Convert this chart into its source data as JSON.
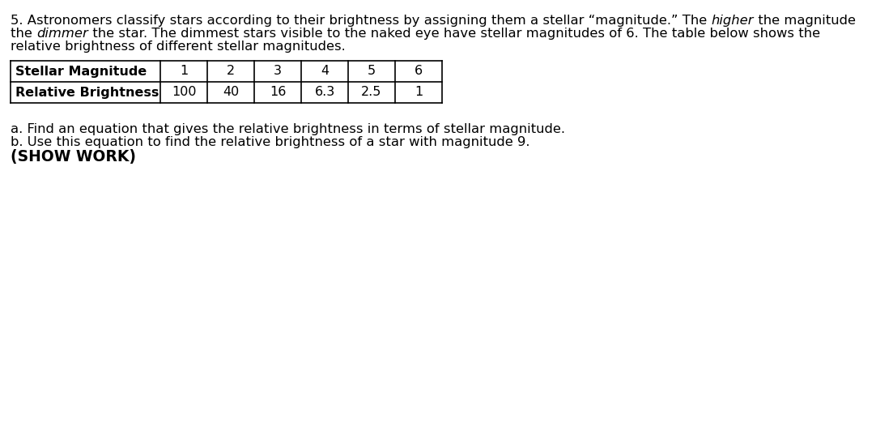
{
  "line1_normal": "5. Astronomers classify stars according to their brightness by assigning them a stellar “magnitude.” The ",
  "line1_italic": "higher",
  "line1_end": " the magnitude",
  "line2_start": "the ",
  "line2_italic": "dimmer",
  "line2_end": " the star. The dimmest stars visible to the naked eye have stellar magnitudes of 6. The table below shows the",
  "line3": "relative brightness of different stellar magnitudes.",
  "row1_label": "Stellar Magnitude",
  "row2_label": "Relative Brightness",
  "col_headers": [
    "1",
    "2",
    "3",
    "4",
    "5",
    "6"
  ],
  "row2_values": [
    "100",
    "40",
    "16",
    "6.3",
    "2.5",
    "1"
  ],
  "question_a": "a. Find an equation that gives the relative brightness in terms of stellar magnitude.",
  "question_b": "b. Use this equation to find the relative brightness of a star with magnitude 9.",
  "show_work": "(SHOW WORK)",
  "bg_color": "#ffffff",
  "text_color": "#000000",
  "font_size_body": 11.8,
  "font_size_table": 11.5,
  "font_size_show_work": 13.5,
  "fig_width": 10.82,
  "fig_height": 5.43,
  "dpi": 100
}
